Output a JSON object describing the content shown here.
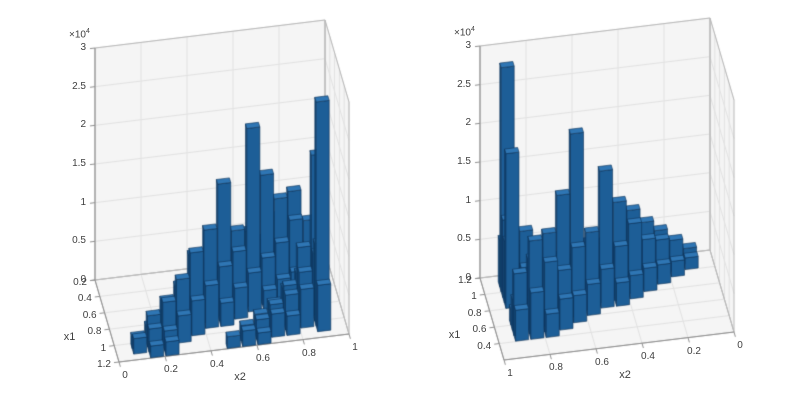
{
  "page": {
    "background": "#ffffff"
  },
  "chart_data": {
    "type": "bar",
    "subtype": "3d-histogram-bar3",
    "title": "",
    "xlabel": "x2",
    "ylabel": "x1",
    "zlim": [
      0,
      30000
    ],
    "x1_range": [
      0.2,
      1.2
    ],
    "x2_range": [
      0,
      1
    ],
    "n_bins": 15,
    "z_exponent": {
      "base": "×10",
      "power": "4"
    },
    "z_tick_values": [
      0,
      5000,
      10000,
      15000,
      20000,
      25000,
      30000
    ],
    "counts": [
      [
        0,
        0,
        0,
        0,
        0,
        0,
        0,
        0,
        0,
        0,
        0,
        0,
        0,
        0,
        0
      ],
      [
        0,
        0,
        0,
        0,
        0,
        0,
        0,
        0,
        0,
        0,
        0,
        0,
        0,
        0,
        0
      ],
      [
        0,
        0,
        0,
        0,
        0,
        0,
        0,
        0,
        0,
        0,
        0,
        0,
        0,
        0,
        0
      ],
      [
        0,
        0,
        0,
        0,
        0,
        0,
        0,
        0,
        0,
        0,
        0,
        3000,
        6000,
        4000,
        0
      ],
      [
        0,
        0,
        0,
        0,
        0,
        0,
        0,
        0,
        0,
        0,
        4000,
        9000,
        12000,
        8000,
        0
      ],
      [
        0,
        0,
        0,
        0,
        0,
        0,
        0,
        0,
        0,
        3500,
        7000,
        12000,
        9000,
        4000,
        0
      ],
      [
        0,
        0,
        0,
        0,
        0,
        0,
        0,
        0,
        4000,
        9000,
        16000,
        7000,
        3000,
        2000,
        0
      ],
      [
        0,
        0,
        0,
        0,
        0,
        0,
        3000,
        5000,
        10000,
        23000,
        6000,
        3000,
        0,
        0,
        0
      ],
      [
        0,
        0,
        0,
        0,
        0,
        3000,
        7000,
        17000,
        8000,
        5000,
        2500,
        0,
        0,
        0,
        0
      ],
      [
        0,
        0,
        0,
        0,
        3000,
        9000,
        12000,
        7000,
        4000,
        0,
        0,
        0,
        5000,
        20000,
        0
      ],
      [
        0,
        0,
        0,
        2500,
        6000,
        10000,
        5500,
        3000,
        0,
        0,
        0,
        4000,
        9000,
        8000,
        0
      ],
      [
        0,
        0,
        2000,
        5000,
        7500,
        4500,
        0,
        0,
        0,
        0,
        3000,
        5000,
        6500,
        10000,
        0
      ],
      [
        0,
        1500,
        4000,
        5500,
        3500,
        0,
        0,
        0,
        0,
        2500,
        3500,
        4500,
        5000,
        29000,
        0
      ],
      [
        0,
        2000,
        3000,
        2500,
        0,
        0,
        0,
        0,
        2000,
        2500,
        3000,
        2500,
        0,
        6000,
        0
      ],
      [
        0,
        0,
        1500,
        1800,
        0,
        0,
        0,
        1500,
        2000,
        1500,
        0,
        0,
        0,
        0,
        0
      ]
    ],
    "plots": [
      {
        "name": "left",
        "z_ticks": [
          "0",
          "0.5",
          "1",
          "1.5",
          "2",
          "2.5",
          "3"
        ],
        "x1_ticks": [
          "0.2",
          "0.4",
          "0.6",
          "0.8",
          "1",
          "1.2"
        ],
        "x2_ticks": [
          "0",
          "0.2",
          "0.4",
          "0.6",
          "0.8",
          "1"
        ],
        "x1_reversed": false,
        "x2_reversed": false,
        "xlabel": "x2",
        "ylabel": "x1"
      },
      {
        "name": "right",
        "z_ticks": [
          "0",
          "0.5",
          "1",
          "1.5",
          "2",
          "2.5",
          "3"
        ],
        "x1_ticks": [
          "1.2",
          "1",
          "0.8",
          "0.6",
          "0.4"
        ],
        "x2_ticks": [
          "1",
          "0.8",
          "0.6",
          "0.4",
          "0.2",
          "0"
        ],
        "x1_reversed": true,
        "x2_reversed": true,
        "xlabel": "x2",
        "ylabel": "x1"
      }
    ],
    "colors": {
      "bar_top": "#2f76b4",
      "bar_front": "#1d5e97",
      "bar_side": "#174e80",
      "bar_edge": "#0e3257",
      "wall": "#f5f5f5",
      "grid": "#e2e2e2",
      "box": "#b8b8b8",
      "axis": "#8f8f8f",
      "text": "#3f3f3f"
    }
  }
}
